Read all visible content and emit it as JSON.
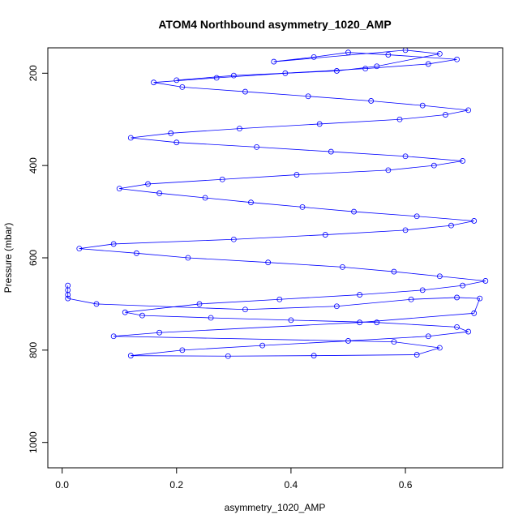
{
  "chart_data": {
    "type": "scatter",
    "title": "ATOM4 Northbound asymmetry_1020_AMP",
    "xlabel": "asymmetry_1020_AMP",
    "ylabel": "Pressure (mbar)",
    "xlim": [
      -0.025,
      0.77
    ],
    "ylim": [
      1055,
      145
    ],
    "y_reversed": true,
    "x_ticks": [
      "0.0",
      "0.2",
      "0.4",
      "0.6"
    ],
    "x_tick_values": [
      0.0,
      0.2,
      0.4,
      0.6
    ],
    "y_ticks": [
      "200",
      "400",
      "600",
      "800",
      "1000"
    ],
    "y_tick_values": [
      200,
      400,
      600,
      800,
      1000
    ],
    "grid": false,
    "legend": "none",
    "series_style": "points and connecting lines (type='b'), open circles",
    "color": "#0000ff",
    "points_note": "Dense cloud of several thousand points; x mostly 0.1-0.74 with a cluster near 0.01 around 660-690 mbar; pressure 150-820 mbar, densest 600-800 mbar.",
    "series": [
      {
        "x": [
          0.01,
          0.01,
          0.01,
          0.01,
          0.06,
          0.32,
          0.48,
          0.61,
          0.69,
          0.73,
          0.72,
          0.52,
          0.17,
          0.09,
          0.58,
          0.66,
          0.62,
          0.44,
          0.29,
          0.12,
          0.21,
          0.35,
          0.5,
          0.64,
          0.71,
          0.69,
          0.55,
          0.4,
          0.26,
          0.14,
          0.11,
          0.24,
          0.38,
          0.52,
          0.63,
          0.7,
          0.74,
          0.66,
          0.58,
          0.49,
          0.36,
          0.22,
          0.13,
          0.03,
          0.09,
          0.3,
          0.46,
          0.6,
          0.68,
          0.72,
          0.62,
          0.51,
          0.42,
          0.33,
          0.25,
          0.17,
          0.1,
          0.15,
          0.28,
          0.41,
          0.57,
          0.65,
          0.7,
          0.6,
          0.47,
          0.34,
          0.2,
          0.12,
          0.19,
          0.31,
          0.45,
          0.59,
          0.67,
          0.71,
          0.63,
          0.54,
          0.43,
          0.32,
          0.21,
          0.16,
          0.27,
          0.39,
          0.53,
          0.64,
          0.69,
          0.57,
          0.5,
          0.44,
          0.37,
          0.6,
          0.66,
          0.55,
          0.48,
          0.3,
          0.2
        ],
        "y": [
          660,
          670,
          680,
          688,
          700,
          712,
          705,
          690,
          686,
          688,
          720,
          740,
          762,
          770,
          782,
          795,
          810,
          812,
          813,
          812,
          800,
          790,
          780,
          770,
          760,
          750,
          740,
          735,
          730,
          725,
          718,
          700,
          690,
          680,
          670,
          660,
          650,
          640,
          630,
          620,
          610,
          600,
          590,
          580,
          570,
          560,
          550,
          540,
          530,
          520,
          510,
          500,
          490,
          480,
          470,
          460,
          450,
          440,
          430,
          420,
          410,
          400,
          390,
          380,
          370,
          360,
          350,
          340,
          330,
          320,
          310,
          300,
          290,
          280,
          270,
          260,
          250,
          240,
          230,
          220,
          210,
          200,
          190,
          180,
          170,
          160,
          155,
          165,
          175,
          150,
          158,
          185,
          195,
          205,
          215
        ]
      }
    ]
  }
}
